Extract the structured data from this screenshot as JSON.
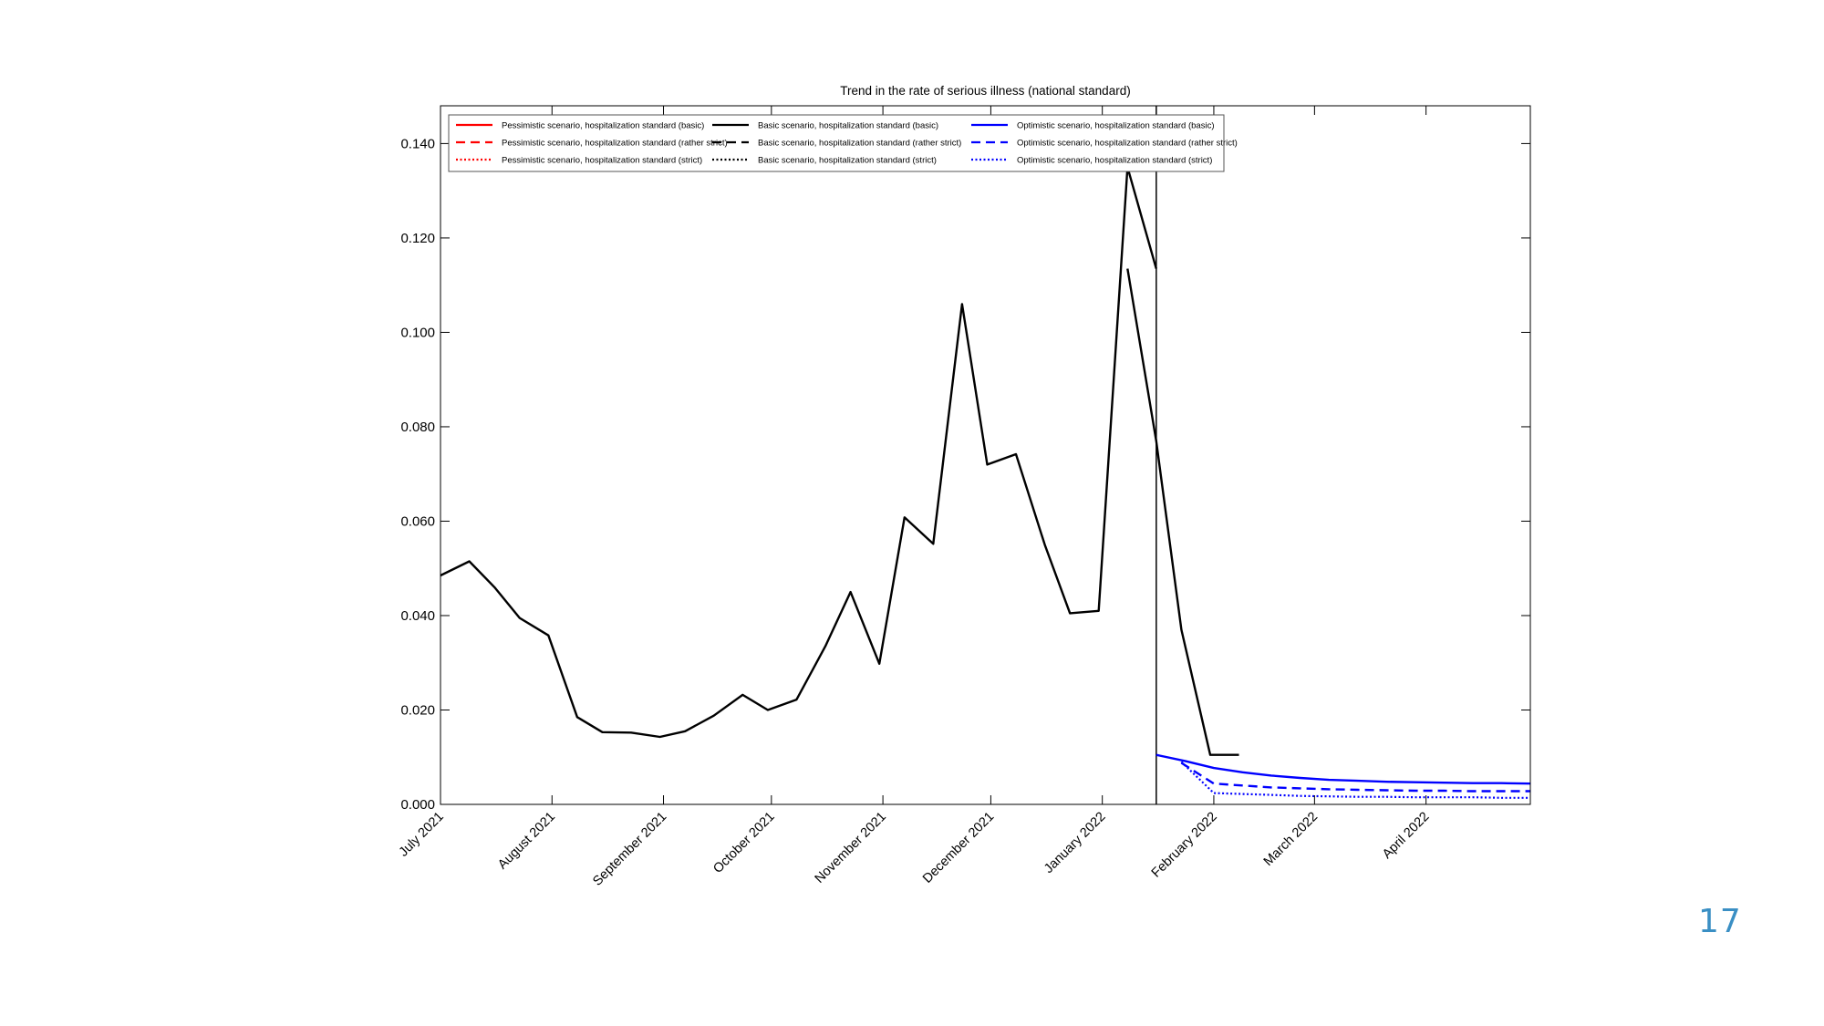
{
  "page": {
    "number": "17"
  },
  "chart_data": {
    "type": "line",
    "title": "Trend in the rate of serious illness (national standard)",
    "xlabel": "",
    "ylabel": "",
    "ylim": [
      0,
      0.148
    ],
    "yticks": [
      0.0,
      0.02,
      0.04,
      0.06,
      0.08,
      0.1,
      0.12,
      0.14
    ],
    "ytick_labels": [
      "0.000",
      "0.020",
      "0.040",
      "0.060",
      "0.080",
      "0.100",
      "0.120",
      "0.140"
    ],
    "xlim": [
      "2021-07-01",
      "2022-04-30"
    ],
    "xticks": [
      {
        "date": "2021-07-01",
        "label": "July 2021"
      },
      {
        "date": "2021-08-01",
        "label": "August 2021"
      },
      {
        "date": "2021-09-01",
        "label": "September 2021"
      },
      {
        "date": "2021-10-01",
        "label": "October 2021"
      },
      {
        "date": "2021-11-01",
        "label": "November 2021"
      },
      {
        "date": "2021-12-01",
        "label": "December 2021"
      },
      {
        "date": "2022-01-01",
        "label": "January 2022"
      },
      {
        "date": "2022-02-01",
        "label": "February 2022"
      },
      {
        "date": "2022-03-01",
        "label": "March 2022"
      },
      {
        "date": "2022-04-01",
        "label": "April 2022"
      }
    ],
    "vertical_line_date": "2022-01-16",
    "grid": false,
    "legend_position": "top",
    "legend": [
      {
        "label": "Pessimistic scenario, hospitalization standard (basic)",
        "color": "#ff0000",
        "dash": "solid"
      },
      {
        "label": "Pessimistic scenario, hospitalization standard (rather strict)",
        "color": "#ff0000",
        "dash": "dashed"
      },
      {
        "label": "Pessimistic scenario, hospitalization standard (strict)",
        "color": "#ff0000",
        "dash": "dotted"
      },
      {
        "label": "Basic scenario, hospitalization standard (basic)",
        "color": "#000000",
        "dash": "solid"
      },
      {
        "label": "Basic scenario, hospitalization standard (rather strict)",
        "color": "#000000",
        "dash": "dashed"
      },
      {
        "label": "Basic scenario, hospitalization standard (strict)",
        "color": "#000000",
        "dash": "dotted"
      },
      {
        "label": "Optimistic scenario, hospitalization standard (basic)",
        "color": "#0000ff",
        "dash": "solid"
      },
      {
        "label": "Optimistic scenario, hospitalization standard (rather strict)",
        "color": "#0000ff",
        "dash": "dashed"
      },
      {
        "label": "Optimistic scenario, hospitalization standard (strict)",
        "color": "#0000ff",
        "dash": "dotted"
      }
    ],
    "series": [
      {
        "color": "#000000",
        "dash": "solid",
        "x": [
          "2021-07-01",
          "2021-07-09",
          "2021-07-16",
          "2021-07-23",
          "2021-07-31",
          "2021-08-08",
          "2021-08-15",
          "2021-08-23",
          "2021-08-31",
          "2021-09-07",
          "2021-09-15",
          "2021-09-23",
          "2021-09-30",
          "2021-10-08",
          "2021-10-16",
          "2021-10-23",
          "2021-10-31",
          "2021-11-07",
          "2021-11-15",
          "2021-11-23",
          "2021-11-30",
          "2021-12-08",
          "2021-12-16",
          "2021-12-23",
          "2021-12-31",
          "2022-01-08",
          "2022-01-16"
        ],
        "values": [
          0.0485,
          0.0515,
          0.046,
          0.0395,
          0.0358,
          0.0185,
          0.0153,
          0.0152,
          0.0143,
          0.0155,
          0.0188,
          0.0232,
          0.02,
          0.0222,
          0.0335,
          0.045,
          0.0298,
          0.0608,
          0.0552,
          0.106,
          0.072,
          0.0742,
          0.055,
          0.0405,
          0.041,
          0.135,
          0.1135
        ]
      },
      {
        "color": "#000000",
        "dash": "solid",
        "x": [
          "2022-01-08",
          "2022-01-16",
          "2022-01-23",
          "2022-01-31",
          "2022-02-08"
        ],
        "values": [
          0.1135,
          0.077,
          0.037,
          0.0105,
          0.0105
        ]
      },
      {
        "color": "#0000ff",
        "dash": "solid",
        "x": [
          "2022-01-16",
          "2022-01-24",
          "2022-02-01",
          "2022-02-09",
          "2022-02-17",
          "2022-02-25",
          "2022-03-05",
          "2022-03-13",
          "2022-03-21",
          "2022-03-29",
          "2022-04-06",
          "2022-04-14",
          "2022-04-22",
          "2022-04-30"
        ],
        "values": [
          0.0105,
          0.0092,
          0.0077,
          0.0068,
          0.0061,
          0.0056,
          0.0052,
          0.005,
          0.0048,
          0.0047,
          0.0046,
          0.0045,
          0.0045,
          0.0044
        ]
      },
      {
        "color": "#0000ff",
        "dash": "dashed",
        "x": [
          "2022-01-23",
          "2022-02-01",
          "2022-02-09",
          "2022-02-17",
          "2022-02-25",
          "2022-03-05",
          "2022-03-13",
          "2022-03-21",
          "2022-03-29",
          "2022-04-06",
          "2022-04-14",
          "2022-04-22",
          "2022-04-30"
        ],
        "values": [
          0.0088,
          0.0044,
          0.004,
          0.0036,
          0.0034,
          0.0032,
          0.0031,
          0.003,
          0.0029,
          0.0029,
          0.0028,
          0.0028,
          0.0028
        ]
      },
      {
        "color": "#0000ff",
        "dash": "dotted",
        "x": [
          "2022-01-23",
          "2022-02-01",
          "2022-02-09",
          "2022-02-17",
          "2022-02-25",
          "2022-03-05",
          "2022-03-13",
          "2022-03-21",
          "2022-03-29",
          "2022-04-06",
          "2022-04-14",
          "2022-04-22",
          "2022-04-30"
        ],
        "values": [
          0.009,
          0.0024,
          0.0022,
          0.002,
          0.0018,
          0.0017,
          0.0016,
          0.0016,
          0.0015,
          0.0015,
          0.0015,
          0.0014,
          0.0014
        ]
      }
    ]
  }
}
